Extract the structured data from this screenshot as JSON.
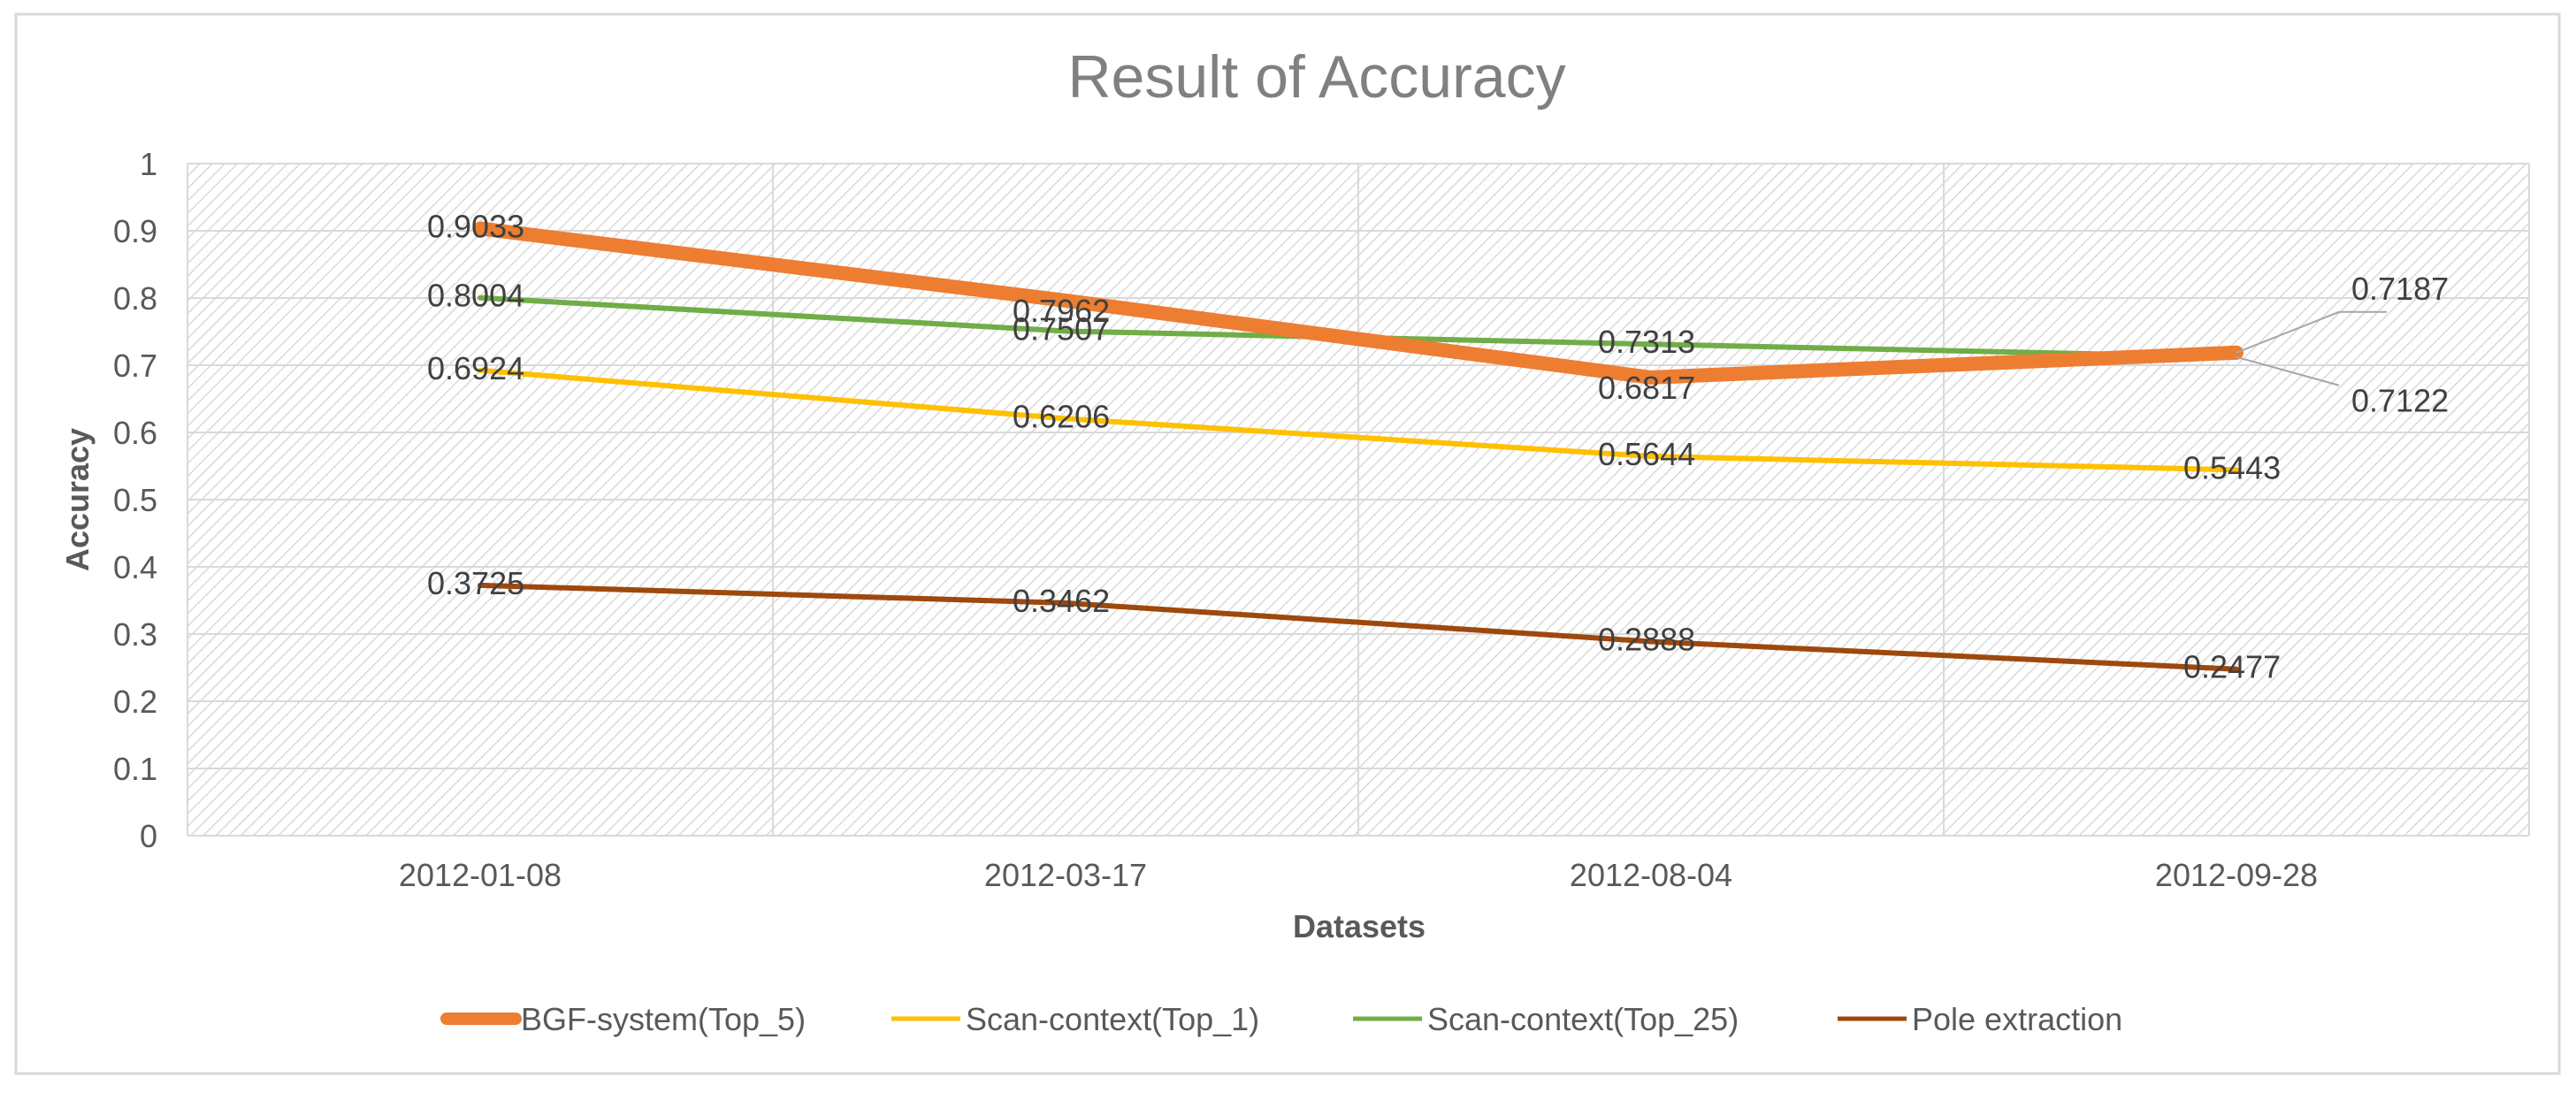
{
  "chart_data": {
    "type": "line",
    "title": "Result of Accuracy",
    "xlabel": "Datasets",
    "ylabel": "Accuracy",
    "ylim": [
      0,
      1
    ],
    "yticks": [
      "0",
      "0.1",
      "0.2",
      "0.3",
      "0.4",
      "0.5",
      "0.6",
      "0.7",
      "0.8",
      "0.9",
      "1"
    ],
    "categories": [
      "2012-01-08",
      "2012-03-17",
      "2012-08-04",
      "2012-09-28"
    ],
    "grid": true,
    "legend_position": "bottom",
    "series": [
      {
        "name": "BGF-system(Top_5)",
        "values": [
          0.9033,
          0.7962,
          0.6817,
          0.7187
        ],
        "labels": [
          "0.9033",
          "0.7962",
          "0.6817",
          "0.7187"
        ],
        "color": "#ED7D31"
      },
      {
        "name": "Scan-context(Top_1)",
        "values": [
          0.6924,
          0.6206,
          0.5644,
          0.5443
        ],
        "labels": [
          "0.6924",
          "0.6206",
          "0.5644",
          "0.5443"
        ],
        "color": "#FFC000"
      },
      {
        "name": "Scan-context(Top_25)",
        "values": [
          0.8004,
          0.7507,
          0.7313,
          0.7122
        ],
        "labels": [
          "0.8004",
          "0.7507",
          "0.7313",
          "0.7122"
        ],
        "color": "#70AD47"
      },
      {
        "name": "Pole extraction",
        "values": [
          0.3725,
          0.3462,
          0.2888,
          0.2477
        ],
        "labels": [
          "0.3725",
          "0.3462",
          "0.2888",
          "0.2477"
        ],
        "color": "#9E480E"
      }
    ]
  }
}
